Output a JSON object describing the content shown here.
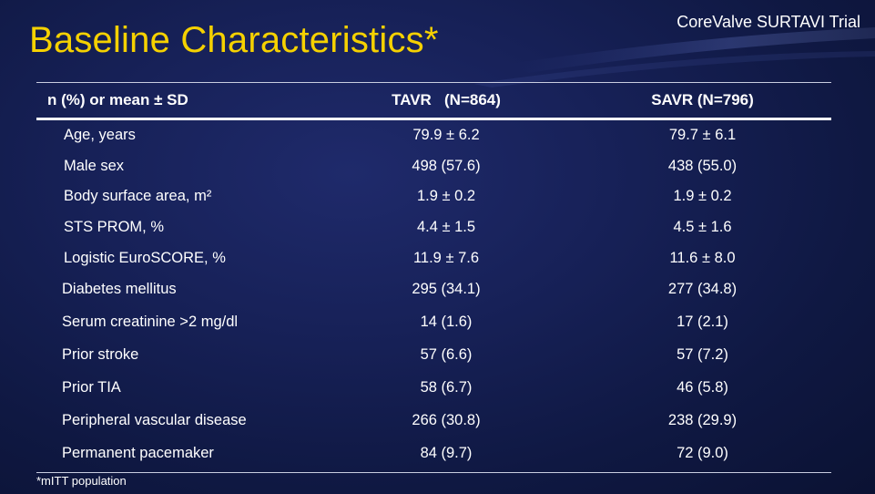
{
  "slide": {
    "title": "Baseline Characteristics*",
    "brand": "CoreValve SURTAVI Trial",
    "footnote": "*mITT population"
  },
  "table": {
    "headers": {
      "label": "n (%) or mean ± SD",
      "tavr": "TAVR   (N=864)",
      "savr": "SAVR (N=796)"
    },
    "rows": [
      {
        "label": "Age, years",
        "tavr": "79.9 ± 6.2",
        "savr": "79.7 ± 6.1"
      },
      {
        "label": "Male sex",
        "tavr": "498 (57.6)",
        "savr": "438 (55.0)"
      },
      {
        "label": "Body surface area, m²",
        "tavr": "1.9 ± 0.2",
        "savr": "1.9 ± 0.2"
      },
      {
        "label": "STS PROM, %",
        "tavr": "4.4 ± 1.5",
        "savr": "4.5 ± 1.6"
      },
      {
        "label": "Logistic EuroSCORE, %",
        "tavr": "11.9 ± 7.6",
        "savr": "11.6 ± 8.0"
      },
      {
        "label": "Diabetes mellitus",
        "tavr": "295 (34.1)",
        "savr": "277 (34.8)"
      },
      {
        "label": "Serum creatinine >2 mg/dl",
        "tavr": "14 (1.6)",
        "savr": "17 (2.1)"
      },
      {
        "label": "Prior stroke",
        "tavr": "57 (6.6)",
        "savr": "57 (7.2)"
      },
      {
        "label": "Prior TIA",
        "tavr": "58 (6.7)",
        "savr": "46 (5.8)"
      },
      {
        "label": "Peripheral vascular disease",
        "tavr": "266 (30.8)",
        "savr": "238 (29.9)"
      },
      {
        "label": "Permanent pacemaker",
        "tavr": "84 (9.7)",
        "savr": "72 (9.0)"
      }
    ]
  },
  "colors": {
    "background": "#172158",
    "title": "#f5d100",
    "text": "#ffffff",
    "rule": "#c9cde0"
  }
}
